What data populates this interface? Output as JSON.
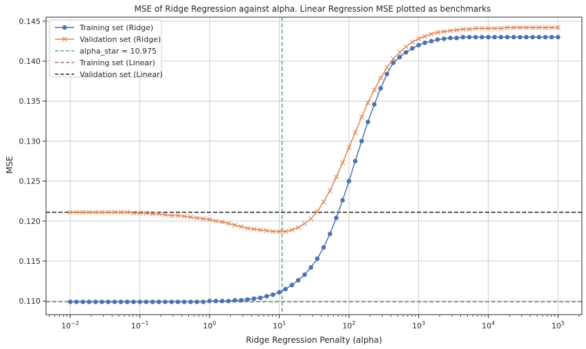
{
  "chart_data": {
    "type": "line",
    "title": "MSE of Ridge Regression against alpha. Linear Regression MSE plotted as benchmarks",
    "xlabel": "Ridge Regression Penalty (alpha)",
    "ylabel": "MSE",
    "xscale": "log",
    "xlim": [
      0.0045,
      220000
    ],
    "ylim": [
      0.1083,
      0.1455
    ],
    "x_ticks": [
      0.01,
      0.1,
      1,
      10,
      100,
      1000,
      10000,
      100000
    ],
    "x_tick_labels": [
      {
        "base": "10",
        "exp": "−2"
      },
      {
        "base": "10",
        "exp": "−1"
      },
      {
        "base": "10",
        "exp": "0"
      },
      {
        "base": "10",
        "exp": "1"
      },
      {
        "base": "10",
        "exp": "2"
      },
      {
        "base": "10",
        "exp": "3"
      },
      {
        "base": "10",
        "exp": "4"
      },
      {
        "base": "10",
        "exp": "5"
      }
    ],
    "y_ticks": [
      0.11,
      0.115,
      0.12,
      0.125,
      0.13,
      0.135,
      0.14,
      0.145
    ],
    "y_tick_labels": [
      "0.110",
      "0.115",
      "0.120",
      "0.125",
      "0.130",
      "0.135",
      "0.140",
      "0.145"
    ],
    "grid": true,
    "legend_position": "top-left",
    "series": [
      {
        "name": "Training set (Ridge)",
        "color": "#4c72b0",
        "marker": "circle",
        "x": [
          0.01,
          0.0123,
          0.0152,
          0.0187,
          0.0231,
          0.0285,
          0.0351,
          0.0433,
          0.0534,
          0.0658,
          0.0811,
          0.1,
          0.123,
          0.152,
          0.187,
          0.231,
          0.285,
          0.351,
          0.433,
          0.534,
          0.658,
          0.811,
          1,
          1.23,
          1.52,
          1.87,
          2.31,
          2.85,
          3.51,
          4.33,
          5.34,
          6.58,
          8.11,
          10,
          12.3,
          15.2,
          18.7,
          23.1,
          28.5,
          35.1,
          43.3,
          53.4,
          65.8,
          81.1,
          100,
          123,
          152,
          187,
          231,
          285,
          351,
          433,
          534,
          658,
          811,
          1000,
          1230,
          1520,
          1870,
          2310,
          2850,
          3510,
          4330,
          5340,
          6580,
          8110,
          10000,
          12300,
          15200,
          18700,
          23100,
          28500,
          35100,
          43300,
          53400,
          65800,
          81100,
          100000
        ],
        "y": [
          0.1099,
          0.1099,
          0.1099,
          0.1099,
          0.1099,
          0.1099,
          0.1099,
          0.1099,
          0.1099,
          0.1099,
          0.1099,
          0.1099,
          0.1099,
          0.1099,
          0.1099,
          0.1099,
          0.1099,
          0.1099,
          0.1099,
          0.1099,
          0.1099,
          0.1099,
          0.11,
          0.11,
          0.11,
          0.11,
          0.1101,
          0.1101,
          0.1102,
          0.1103,
          0.1104,
          0.1106,
          0.1108,
          0.1111,
          0.1115,
          0.112,
          0.1126,
          0.1133,
          0.1142,
          0.1153,
          0.1167,
          0.1184,
          0.1204,
          0.1226,
          0.125,
          0.1275,
          0.13,
          0.1324,
          0.1346,
          0.1366,
          0.1384,
          0.1398,
          0.1405,
          0.1411,
          0.1416,
          0.142,
          0.1423,
          0.1425,
          0.1427,
          0.1428,
          0.1429,
          0.1429,
          0.143,
          0.143,
          0.143,
          0.143,
          0.143,
          0.143,
          0.143,
          0.143,
          0.143,
          0.143,
          0.143,
          0.143,
          0.143,
          0.143,
          0.143,
          0.143
        ]
      },
      {
        "name": "Validation set (Ridge)",
        "color": "#dd8452",
        "marker": "x",
        "x": [
          0.01,
          0.0123,
          0.0152,
          0.0187,
          0.0231,
          0.0285,
          0.0351,
          0.0433,
          0.0534,
          0.0658,
          0.0811,
          0.1,
          0.123,
          0.152,
          0.187,
          0.231,
          0.285,
          0.351,
          0.433,
          0.534,
          0.658,
          0.811,
          1,
          1.23,
          1.52,
          1.87,
          2.31,
          2.85,
          3.51,
          4.33,
          5.34,
          6.58,
          8.11,
          10,
          12.3,
          15.2,
          18.7,
          23.1,
          28.5,
          35.1,
          43.3,
          53.4,
          65.8,
          81.1,
          100,
          123,
          152,
          187,
          231,
          285,
          351,
          433,
          534,
          658,
          811,
          1000,
          1230,
          1520,
          1870,
          2310,
          2850,
          3510,
          4330,
          5340,
          6580,
          8110,
          10000,
          12300,
          15200,
          18700,
          23100,
          28500,
          35100,
          43300,
          53400,
          65800,
          81100,
          100000
        ],
        "y": [
          0.1211,
          0.1211,
          0.1211,
          0.1211,
          0.1211,
          0.1211,
          0.1211,
          0.1211,
          0.1211,
          0.1211,
          0.121,
          0.121,
          0.121,
          0.1209,
          0.1209,
          0.1208,
          0.1207,
          0.1207,
          0.1206,
          0.1205,
          0.1204,
          0.1203,
          0.1202,
          0.12,
          0.1199,
          0.1197,
          0.1195,
          0.1193,
          0.1191,
          0.119,
          0.1189,
          0.1188,
          0.1187,
          0.1187,
          0.1187,
          0.1189,
          0.1192,
          0.1197,
          0.1203,
          0.1212,
          0.1224,
          0.1238,
          0.1255,
          0.1273,
          0.1292,
          0.1311,
          0.133,
          0.1348,
          0.1364,
          0.1379,
          0.1392,
          0.1403,
          0.1411,
          0.1418,
          0.1424,
          0.1428,
          0.1431,
          0.1434,
          0.1436,
          0.1437,
          0.1438,
          0.1439,
          0.144,
          0.144,
          0.1441,
          0.1441,
          0.1441,
          0.1441,
          0.1441,
          0.1442,
          0.1442,
          0.1442,
          0.1442,
          0.1442,
          0.1442,
          0.1442,
          0.1442,
          0.1442
        ]
      }
    ],
    "reference_lines": [
      {
        "name": "alpha_star = 10.975",
        "orientation": "vertical",
        "value": 10.975,
        "color": "#55a868",
        "style": "dashed"
      },
      {
        "name": "Training set (Linear)",
        "orientation": "horizontal",
        "value": 0.1099,
        "color": "#808080",
        "style": "dashed"
      },
      {
        "name": "Validation set (Linear)",
        "orientation": "horizontal",
        "value": 0.1211,
        "color": "#1a1a1a",
        "style": "dashed"
      }
    ]
  }
}
